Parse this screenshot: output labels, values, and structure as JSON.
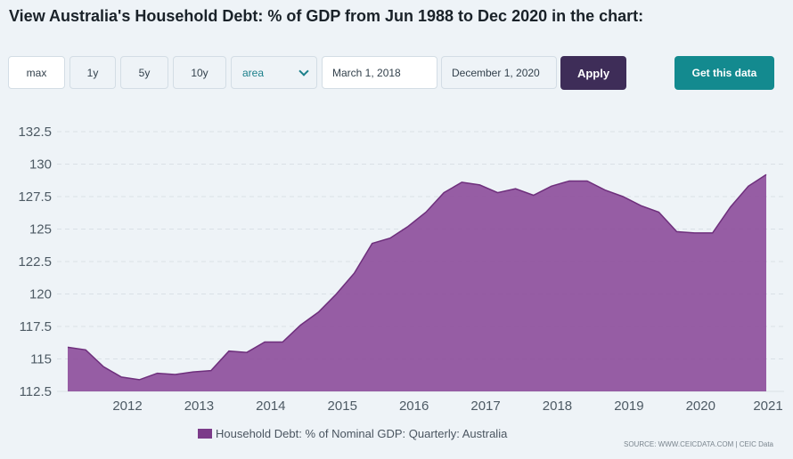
{
  "page_title": "View Australia's Household Debt: % of GDP from Jun 1988 to Dec 2020 in the chart:",
  "controls": {
    "ranges": [
      "max",
      "1y",
      "5y",
      "10y"
    ],
    "chart_type_value": "area",
    "start_date": "March 1, 2018",
    "end_date": "December 1, 2020",
    "apply_label": "Apply",
    "get_data_label": "Get this data"
  },
  "colors": {
    "fill": "#8c4d9a",
    "line": "#6e2f7c",
    "apply": "#3e2d58",
    "get_data": "#138a8f"
  },
  "chart_data": {
    "type": "area",
    "title": "",
    "xlabel": "",
    "ylabel": "",
    "ylim": [
      112.5,
      132.5
    ],
    "y_ticks": [
      "132.5",
      "130",
      "127.5",
      "125",
      "122.5",
      "120",
      "117.5",
      "115",
      "112.5"
    ],
    "x_ticks": [
      "2012",
      "2013",
      "2014",
      "2015",
      "2016",
      "2017",
      "2018",
      "2019",
      "2020",
      "2021"
    ],
    "grid": true,
    "legend_position": "bottom",
    "series": [
      {
        "name": "Household Debt: % of Nominal GDP: Quarterly: Australia",
        "x": [
          "2011-03",
          "2011-06",
          "2011-09",
          "2011-12",
          "2012-03",
          "2012-06",
          "2012-09",
          "2012-12",
          "2013-03",
          "2013-06",
          "2013-09",
          "2013-12",
          "2014-03",
          "2014-06",
          "2014-09",
          "2014-12",
          "2015-03",
          "2015-06",
          "2015-09",
          "2015-12",
          "2016-03",
          "2016-06",
          "2016-09",
          "2016-12",
          "2017-03",
          "2017-06",
          "2017-09",
          "2017-12",
          "2018-03",
          "2018-06",
          "2018-09",
          "2018-12",
          "2019-03",
          "2019-06",
          "2019-09",
          "2019-12",
          "2020-03",
          "2020-06",
          "2020-09",
          "2020-12"
        ],
        "values": [
          115.9,
          115.7,
          114.4,
          113.6,
          113.4,
          113.9,
          113.8,
          114.0,
          114.1,
          115.6,
          115.5,
          116.3,
          116.3,
          117.6,
          118.6,
          120.0,
          121.6,
          123.9,
          124.3,
          125.2,
          126.3,
          127.8,
          128.6,
          128.4,
          127.8,
          128.1,
          127.6,
          128.3,
          128.7,
          128.7,
          128.0,
          127.5,
          126.8,
          126.3,
          124.8,
          124.7,
          124.7,
          126.7,
          128.3,
          129.2
        ]
      }
    ],
    "source": "SOURCE: WWW.CEICDATA.COM | CEIC Data"
  }
}
